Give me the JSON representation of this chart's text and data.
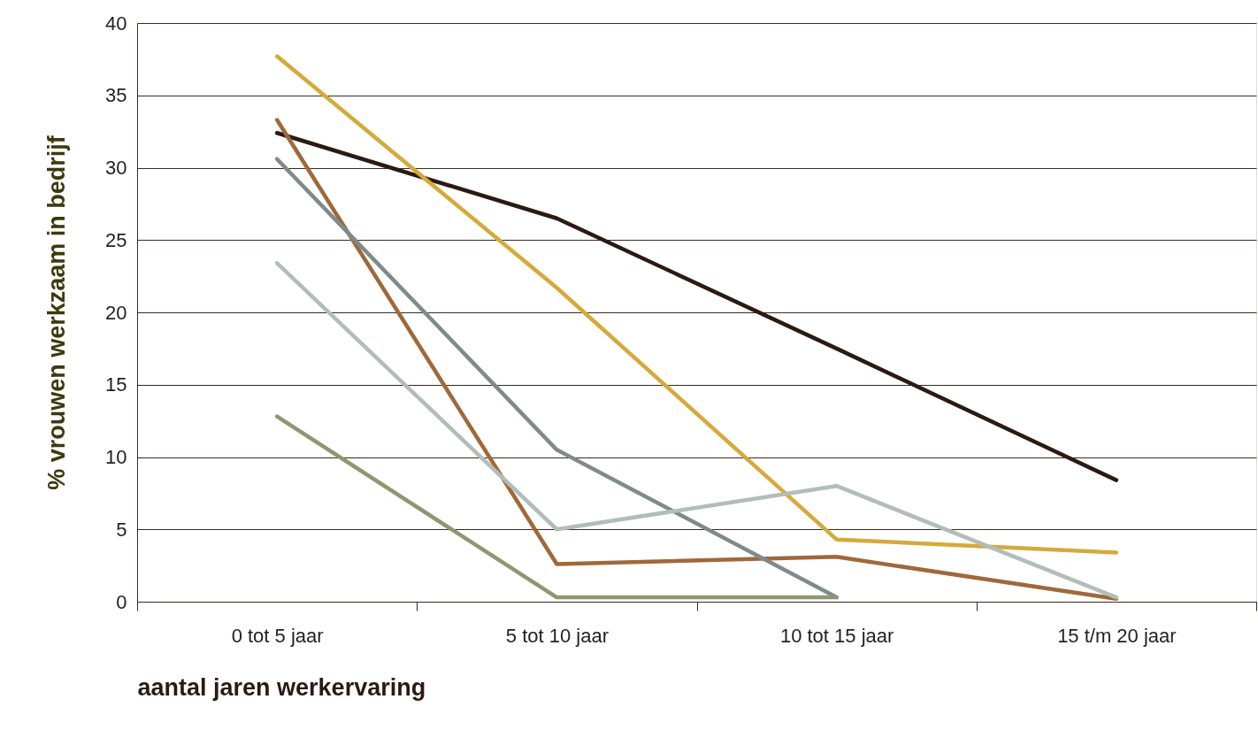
{
  "chart_data": {
    "type": "line",
    "xlabel": "aantal jaren werkervaring",
    "ylabel": "% vrouwen werkzaam in bedrijf",
    "categories": [
      "0 tot 5 jaar",
      "5 tot 10 jaar",
      "10 tot 15 jaar",
      "15 t/m 20 jaar"
    ],
    "series": [
      {
        "color": "#2b1a12",
        "values": [
          32.4,
          26.5,
          17.5,
          8.4
        ]
      },
      {
        "color": "#d4aa3a",
        "values": [
          37.7,
          21.7,
          4.3,
          3.4
        ]
      },
      {
        "color": "#a0683a",
        "values": [
          33.3,
          2.6,
          3.1,
          0.2
        ]
      },
      {
        "color": "#7f8b8a",
        "values": [
          30.6,
          10.5,
          0.3,
          null
        ]
      },
      {
        "color": "#b2bdb9",
        "values": [
          23.4,
          5.0,
          8.0,
          0.3
        ]
      },
      {
        "color": "#8c9870",
        "values": [
          12.8,
          0.3,
          0.3,
          null
        ]
      }
    ],
    "ylim": [
      0,
      40
    ],
    "yticks": [
      0,
      5,
      10,
      15,
      20,
      25,
      30,
      35,
      40
    ],
    "grid": "y"
  }
}
